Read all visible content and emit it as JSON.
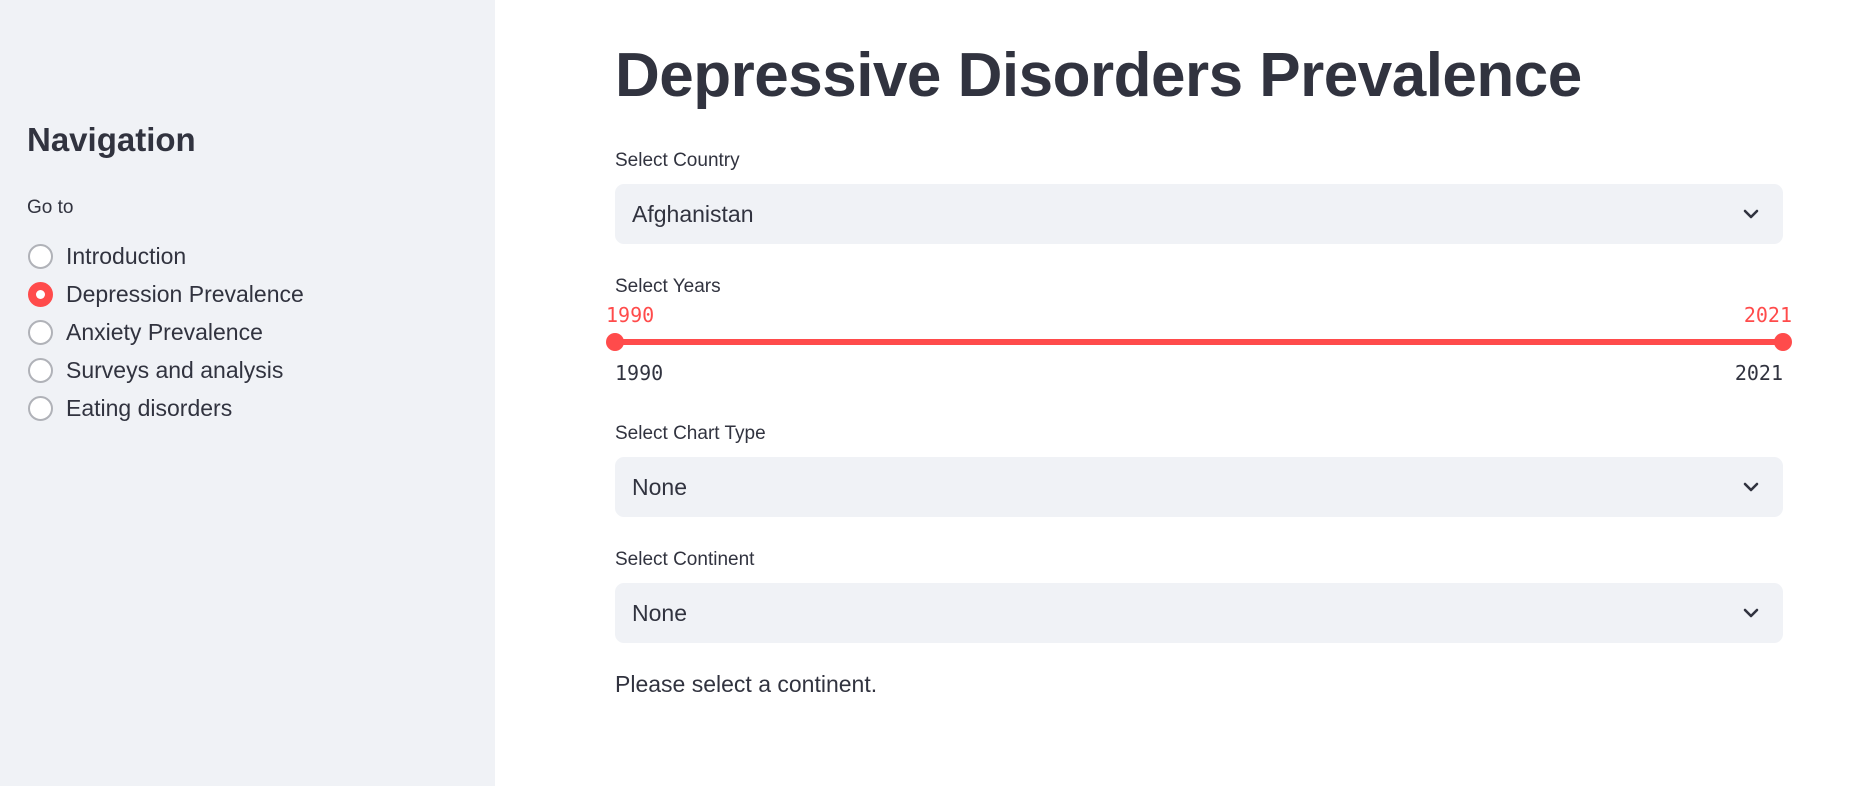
{
  "sidebar": {
    "title": "Navigation",
    "radio_label": "Go to",
    "items": [
      {
        "label": "Introduction",
        "selected": false
      },
      {
        "label": "Depression Prevalence",
        "selected": true
      },
      {
        "label": "Anxiety Prevalence",
        "selected": false
      },
      {
        "label": "Surveys and analysis",
        "selected": false
      },
      {
        "label": "Eating disorders",
        "selected": false
      }
    ]
  },
  "main": {
    "title": "Depressive Disorders Prevalence",
    "country": {
      "label": "Select Country",
      "value": "Afghanistan"
    },
    "years": {
      "label": "Select Years",
      "start": "1990",
      "end": "2021",
      "min": "1990",
      "max": "2021"
    },
    "chart_type": {
      "label": "Select Chart Type",
      "value": "None"
    },
    "continent": {
      "label": "Select Continent",
      "value": "None"
    },
    "info": "Please select a continent."
  },
  "colors": {
    "accent": "#ff4b4b",
    "sidebar_bg": "#f0f2f6",
    "text": "#31333f",
    "input_bg": "#f0f2f6"
  },
  "icons": {
    "dropdown": "chevron-down-icon"
  }
}
